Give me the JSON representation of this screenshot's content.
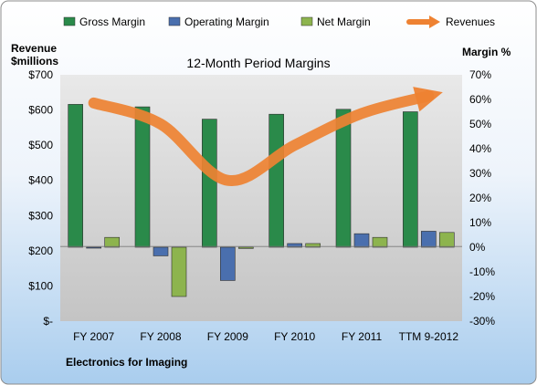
{
  "chart_data": {
    "type": "bar",
    "title": "12-Month Period Margins",
    "company": "Electronics for Imaging",
    "left_axis_title_line1": "Revenue",
    "left_axis_title_line2": "$millions",
    "right_axis_title": "Margin %",
    "categories": [
      "FY 2007",
      "FY 2008",
      "FY 2009",
      "FY 2010",
      "FY 2011",
      "TTM 9-2012"
    ],
    "left_ticks": [
      "$700",
      "$600",
      "$500",
      "$400",
      "$300",
      "$200",
      "$100",
      "$-"
    ],
    "right_ticks": [
      "70%",
      "60%",
      "50%",
      "40%",
      "30%",
      "20%",
      "10%",
      "0%",
      "-10%",
      "-20%",
      "-30%"
    ],
    "left_ylim": [
      0,
      700
    ],
    "right_ylim": [
      -30,
      70
    ],
    "legend_position": "top",
    "grid": false,
    "series": [
      {
        "name": "Gross Margin",
        "axis": "right",
        "kind": "bar",
        "color": "#2a8a4a",
        "values": [
          58,
          57,
          52,
          54,
          56,
          55
        ]
      },
      {
        "name": "Operating Margin",
        "axis": "right",
        "kind": "bar",
        "color": "#4a6fae",
        "values": [
          0,
          -3.5,
          -13.5,
          1.5,
          5.5,
          6.5
        ]
      },
      {
        "name": "Net Margin",
        "axis": "right",
        "kind": "bar",
        "color": "#8db44e",
        "values": [
          4,
          -20,
          -0.5,
          1.5,
          4,
          6
        ]
      },
      {
        "name": "Revenues",
        "axis": "left",
        "kind": "arrow-line",
        "color": "#ee8232",
        "values": [
          620,
          560,
          400,
          500,
          590,
          640
        ]
      }
    ]
  }
}
